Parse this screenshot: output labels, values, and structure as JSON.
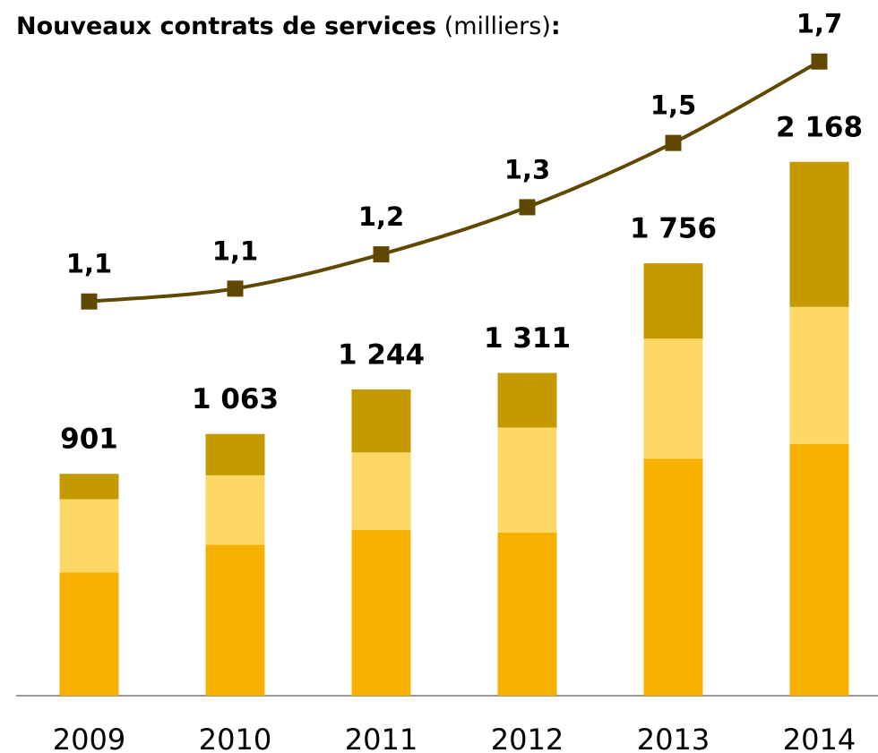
{
  "chart_data": {
    "type": "bar",
    "title": "Nouveaux contrats de services",
    "unit": "(milliers)",
    "title_end": ":",
    "categories": [
      "2009",
      "2010",
      "2011",
      "2012",
      "2013",
      "2014"
    ],
    "series": [
      {
        "color": "#f5b000",
        "values": [
          500,
          613,
          674,
          663,
          962,
          1022
        ]
      },
      {
        "color": "#fdd866",
        "values": [
          298,
          282,
          314,
          426,
          488,
          557
        ]
      },
      {
        "color": "#c49a00",
        "values": [
          103,
          168,
          256,
          222,
          306,
          589
        ]
      }
    ],
    "totals": [
      901,
      1063,
      1244,
      1311,
      1756,
      2168
    ],
    "total_labels": [
      "901",
      "1 063",
      "1 244",
      "1 311",
      "1 756",
      "2 168"
    ],
    "line": {
      "type": "line",
      "axis": "y2",
      "color": "#614800",
      "values": [
        1.1,
        1.13,
        1.21,
        1.32,
        1.47,
        1.66
      ],
      "value_labels": [
        "1,1",
        "1,1",
        "1,2",
        "1,3",
        "1,5",
        "1,7"
      ]
    },
    "ylim": [
      0,
      2680
    ],
    "y2lim": [
      0.18,
      1.72
    ]
  }
}
